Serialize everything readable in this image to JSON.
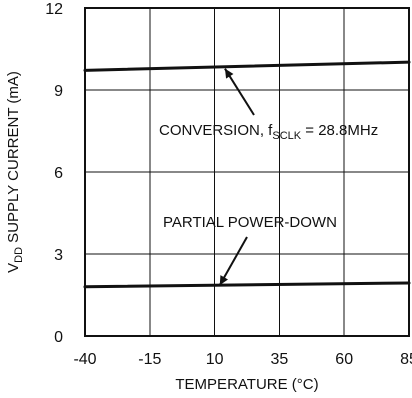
{
  "chart_data": {
    "type": "line",
    "title": "",
    "xlabel": "TEMPERATURE (°C)",
    "ylabel": {
      "main_prefix": "V",
      "subscript": "DD",
      "suffix": " SUPPLY CURRENT (mA)"
    },
    "xlim": [
      -40,
      85
    ],
    "ylim": [
      0,
      12
    ],
    "grid": true,
    "x_ticks": [
      -40,
      -15,
      10,
      35,
      60,
      85
    ],
    "x_tick_labels": [
      "-40",
      "-15",
      "10",
      "35",
      "60",
      "85"
    ],
    "y_ticks": [
      0,
      3,
      6,
      9,
      12
    ],
    "y_tick_labels": [
      "0",
      "3",
      "6",
      "9",
      "12"
    ],
    "series": [
      {
        "points": [
          {
            "x": -40,
            "y": 9.72
          },
          {
            "x": 85,
            "y": 10.02
          }
        ]
      },
      {
        "points": [
          {
            "x": -40,
            "y": 1.8
          },
          {
            "x": 85,
            "y": 1.94
          }
        ]
      }
    ],
    "annotations": [
      {
        "text_prefix": "CONVERSION, f",
        "subscript": "SCLK",
        "text_suffix": " = 28.8MHz",
        "target_x": 14,
        "target_y": 9.78,
        "series_index": 0
      },
      {
        "text": "PARTIAL POWER-DOWN",
        "target_x": 12,
        "target_y": 1.86,
        "series_index": 1
      }
    ],
    "colors": {
      "axis": "#111111",
      "grid": "#111111",
      "line": "#111111",
      "background": "#ffffff"
    }
  }
}
